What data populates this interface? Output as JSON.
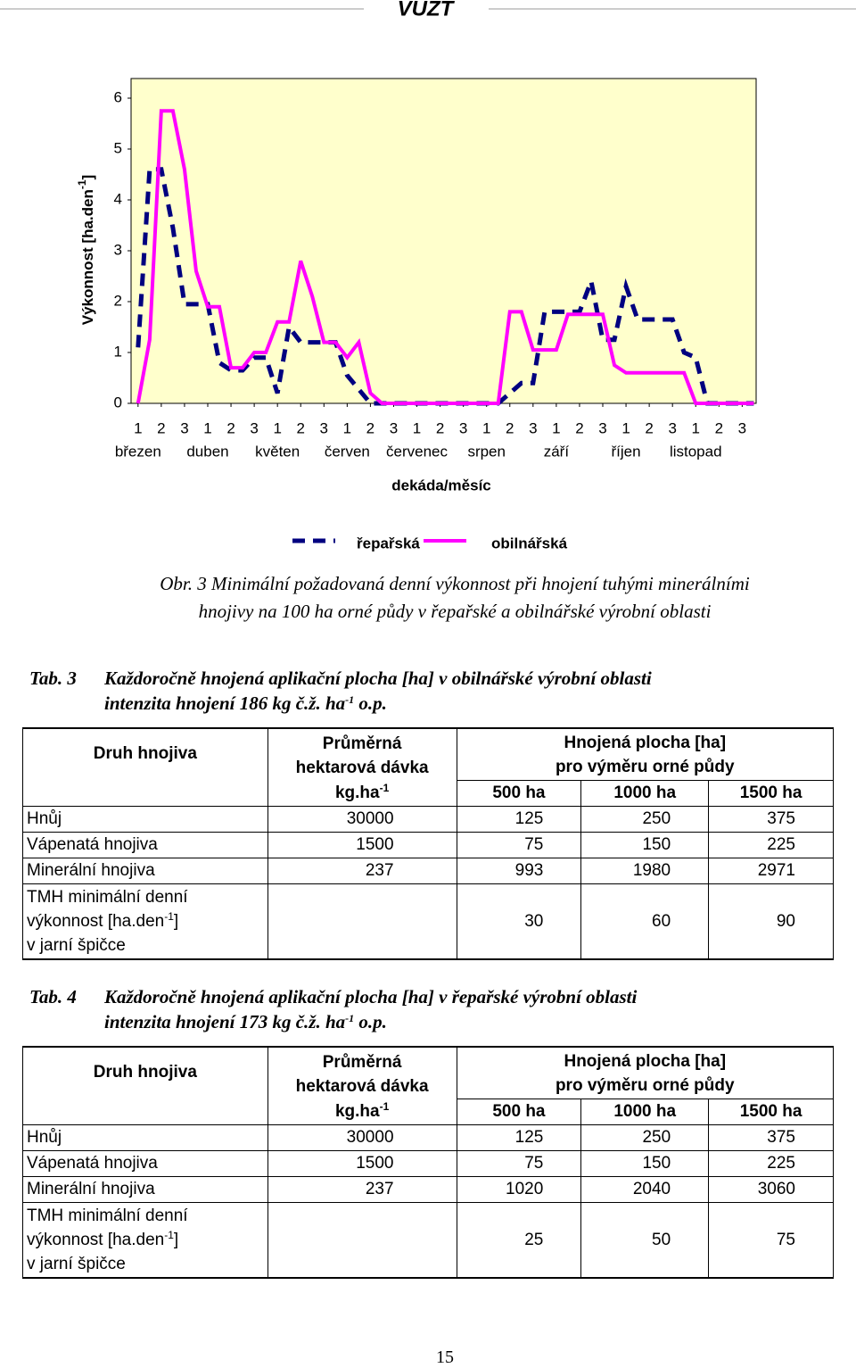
{
  "header": {
    "logo": "VÚZT"
  },
  "chart_data": {
    "type": "line",
    "y_label": {
      "text": "Výkonnost [ha.den",
      "sup": "-1",
      "end": "]"
    },
    "x_label": "dekáda/měsíc",
    "xlim": [
      0.7,
      27.6
    ],
    "xticks": [
      1,
      2,
      3,
      {
        "value": 4,
        "label": "1"
      },
      {
        "value": 5,
        "label": "2"
      },
      {
        "value": 6,
        "label": "3"
      },
      {
        "value": 7,
        "label": "1"
      },
      {
        "value": 8,
        "label": "2"
      },
      {
        "value": 9,
        "label": "3"
      },
      {
        "value": 10,
        "label": "1"
      },
      {
        "value": 11,
        "label": "2"
      },
      {
        "value": 12,
        "label": "3"
      },
      {
        "value": 13,
        "label": "1"
      },
      {
        "value": 14,
        "label": "2"
      },
      {
        "value": 15,
        "label": "3"
      },
      {
        "value": 16,
        "label": "1"
      },
      {
        "value": 17,
        "label": "2"
      },
      {
        "value": 18,
        "label": "3"
      },
      {
        "value": 19,
        "label": "1"
      },
      {
        "value": 20,
        "label": "2"
      },
      {
        "value": 21,
        "label": "3"
      },
      {
        "value": 22,
        "label": "1"
      },
      {
        "value": 23,
        "label": "2"
      },
      {
        "value": 24,
        "label": "3"
      },
      {
        "value": 25,
        "label": "1"
      },
      {
        "value": 26,
        "label": "2"
      },
      {
        "value": 27,
        "label": "3"
      }
    ],
    "months": [
      "březen",
      "duben",
      "květen",
      "červen",
      "červenec",
      "srpen",
      "září",
      "říjen",
      "listopad"
    ],
    "ylim": [
      0,
      6
    ],
    "yticks": [
      0,
      1,
      2,
      3,
      4,
      5,
      6
    ],
    "background": "#ffffcc",
    "series": [
      {
        "name": "řepařská",
        "color": "#000080",
        "dashed": true,
        "x": [
          1,
          1.5,
          2,
          2.5,
          3,
          4,
          4.5,
          5,
          5.5,
          6,
          6.5,
          7,
          7.5,
          8,
          9.5,
          10,
          11,
          16.5,
          17,
          17.5,
          18,
          18.5,
          20,
          20.5,
          21,
          21.5,
          22,
          22.5,
          24,
          24.5,
          25,
          25.5,
          27.5
        ],
        "values": [
          1.1,
          4.6,
          4.6,
          3.45,
          1.95,
          1.95,
          0.8,
          0.65,
          0.65,
          0.9,
          0.9,
          0.2,
          1.5,
          1.2,
          1.2,
          0.55,
          0,
          0,
          0.2,
          0.4,
          0.4,
          1.8,
          1.8,
          2.4,
          1.25,
          1.25,
          2.3,
          1.65,
          1.65,
          1.0,
          0.9,
          0,
          0
        ]
      },
      {
        "name": "obilnářská",
        "color": "#ff00ff",
        "dashed": false,
        "x": [
          1,
          1.5,
          2,
          2.5,
          3,
          3.5,
          4,
          4.5,
          5,
          5.5,
          6,
          6.5,
          7,
          7.5,
          8,
          8.5,
          9,
          9.5,
          10,
          10.5,
          11,
          11.5,
          16.5,
          17,
          17.5,
          18,
          19,
          19.5,
          21,
          21.5,
          22,
          24.5,
          25,
          27.5
        ],
        "values": [
          0,
          1.25,
          5.75,
          5.75,
          4.6,
          2.6,
          1.9,
          1.9,
          0.7,
          0.7,
          1.0,
          1.0,
          1.6,
          1.6,
          2.8,
          2.1,
          1.2,
          1.2,
          0.9,
          1.2,
          0.2,
          0,
          0,
          1.8,
          1.8,
          1.05,
          1.05,
          1.75,
          1.75,
          0.75,
          0.6,
          0.6,
          0,
          0
        ]
      }
    ]
  },
  "figure_caption": [
    "Obr. 3 Minimální požadovaná denní výkonnost při hnojení tuhými minerálními",
    "hnojivy na 100 ha orné půdy v řepařské a obilnářské výrobní oblasti"
  ],
  "tables": [
    {
      "label": "Tab. 3",
      "title": "Každoročně hnojená aplikační plocha [ha] v obilnářské výrobní oblasti",
      "subtitle": {
        "text": "intenzita hnojení 186 kg č.ž. ha",
        "sup": "-1",
        "end": " o.p."
      },
      "header": {
        "col1": "Druh hnojiva",
        "col2": [
          "Průměrná",
          "hektarová dávka"
        ],
        "col2_unit": {
          "text": "kg.ha",
          "sup": "-1"
        },
        "group": [
          "Hnojená plocha [ha]",
          "pro výměru orné půdy"
        ],
        "areas": [
          "500 ha",
          "1000 ha",
          "1500 ha"
        ]
      },
      "rows": [
        [
          "Hnůj",
          30000,
          125,
          250,
          375
        ],
        [
          "Vápenatá hnojiva",
          1500,
          75,
          150,
          225
        ],
        [
          "Minerální hnojiva",
          237,
          993,
          1980,
          2971
        ]
      ],
      "tmh": {
        "label": {
          "line1": "TMH minimální denní",
          "line2": "výkonnost [ha.den",
          "sup": "-1",
          "line2_end": "]",
          "line3": "v jarní špičce"
        },
        "values": [
          30,
          60,
          90
        ]
      }
    },
    {
      "label": "Tab. 4",
      "title": "Každoročně hnojená aplikační plocha [ha] v řepařské výrobní oblasti",
      "subtitle": {
        "text": "intenzita hnojení 173 kg č.ž. ha",
        "sup": "-1",
        "end": " o.p."
      },
      "header": {
        "col1": "Druh hnojiva",
        "col2": [
          "Průměrná",
          "hektarová dávka"
        ],
        "col2_unit": {
          "text": "kg.ha",
          "sup": "-1"
        },
        "group": [
          "Hnojená plocha [ha]",
          "pro výměru orné půdy"
        ],
        "areas": [
          "500 ha",
          "1000 ha",
          "1500 ha"
        ]
      },
      "rows": [
        [
          "Hnůj",
          30000,
          125,
          250,
          375
        ],
        [
          "Vápenatá hnojiva",
          1500,
          75,
          150,
          225
        ],
        [
          "Minerální hnojiva",
          237,
          1020,
          2040,
          3060
        ]
      ],
      "tmh": {
        "label": {
          "line1": "TMH minimální denní",
          "line2": "výkonnost [ha.den",
          "sup": "-1",
          "line2_end": "]",
          "line3": "v jarní špičce"
        },
        "values": [
          25,
          50,
          75
        ]
      }
    }
  ],
  "page_number": 15
}
